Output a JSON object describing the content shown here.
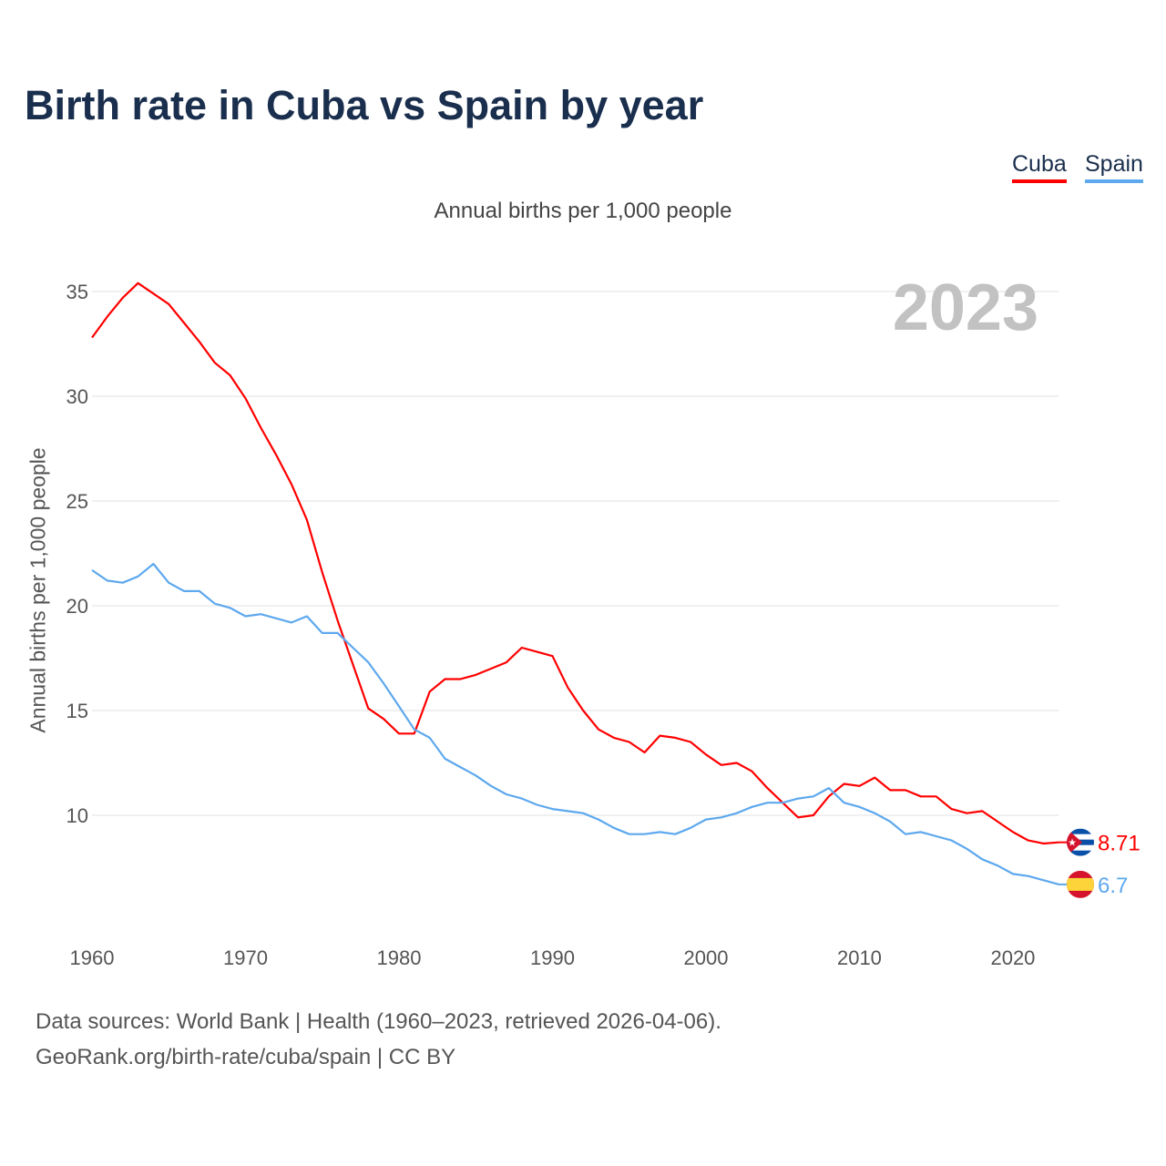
{
  "title": "Birth rate in Cuba vs Spain by year",
  "legend": [
    {
      "label": "Cuba",
      "color": "#ff0000"
    },
    {
      "label": "Spain",
      "color": "#5da8ee"
    }
  ],
  "footer": {
    "sources": "Data sources: World Bank | Health (1960–2023, retrieved 2026-04-06).",
    "credit": "GeoRank.org/birth-rate/cuba/spain | CC BY"
  },
  "chart_data": {
    "type": "line",
    "title": "Birth rate in Cuba vs Spain by year",
    "subtitle": "Annual births per 1,000 people",
    "ylabel": "Annual births per 1,000 people",
    "xlabel": "",
    "year_label": "2023",
    "xlim": [
      1960,
      2023
    ],
    "ylim": [
      5.5,
      36
    ],
    "yticks": [
      10,
      15,
      20,
      25,
      30,
      35
    ],
    "xticks": [
      1960,
      1970,
      1980,
      1990,
      2000,
      2010,
      2020
    ],
    "grid": true,
    "legend_position": "top-right",
    "x_start": 1960,
    "series": [
      {
        "name": "Cuba",
        "color": "#ff0000",
        "end_label": "8.71",
        "flag": "cuba-flag",
        "values": [
          32.8,
          33.8,
          34.7,
          35.4,
          34.9,
          34.4,
          33.5,
          32.6,
          31.6,
          31.0,
          29.9,
          28.5,
          27.2,
          25.8,
          24.1,
          21.6,
          19.3,
          17.2,
          15.1,
          14.6,
          13.9,
          13.9,
          15.9,
          16.5,
          16.5,
          16.7,
          17.0,
          17.3,
          18.0,
          17.8,
          17.6,
          16.1,
          15.0,
          14.1,
          13.7,
          13.5,
          13.0,
          13.8,
          13.7,
          13.5,
          12.9,
          12.4,
          12.5,
          12.1,
          11.3,
          10.6,
          9.9,
          10.0,
          10.9,
          11.5,
          11.4,
          11.8,
          11.2,
          11.2,
          10.9,
          10.9,
          10.3,
          10.1,
          10.2,
          9.7,
          9.2,
          8.8,
          8.65,
          8.71
        ]
      },
      {
        "name": "Spain",
        "color": "#5da8ee",
        "end_label": "6.7",
        "flag": "spain-flag",
        "values": [
          21.7,
          21.2,
          21.1,
          21.4,
          22.0,
          21.1,
          20.7,
          20.7,
          20.1,
          19.9,
          19.5,
          19.6,
          19.4,
          19.2,
          19.5,
          18.7,
          18.7,
          18.0,
          17.3,
          16.3,
          15.2,
          14.1,
          13.7,
          12.7,
          12.3,
          11.9,
          11.4,
          11.0,
          10.8,
          10.5,
          10.3,
          10.2,
          10.1,
          9.8,
          9.4,
          9.1,
          9.1,
          9.2,
          9.1,
          9.4,
          9.8,
          9.9,
          10.1,
          10.4,
          10.6,
          10.6,
          10.8,
          10.9,
          11.3,
          10.6,
          10.4,
          10.1,
          9.7,
          9.1,
          9.2,
          9.0,
          8.8,
          8.4,
          7.9,
          7.6,
          7.2,
          7.1,
          6.9,
          6.7
        ]
      }
    ]
  }
}
